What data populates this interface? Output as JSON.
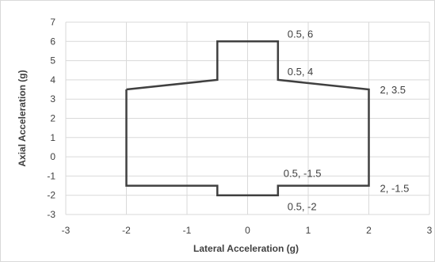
{
  "chart_data": {
    "type": "line",
    "title": "",
    "xlabel": "Lateral Acceleration (g)",
    "ylabel": "Axial Acceleration (g)",
    "xlim": [
      -3,
      3
    ],
    "ylim": [
      -3,
      7
    ],
    "x_ticks": [
      "-3",
      "-2",
      "-1",
      "0",
      "1",
      "2",
      "3"
    ],
    "y_ticks": [
      "-3",
      "-2",
      "-1",
      "0",
      "1",
      "2",
      "3",
      "4",
      "5",
      "6",
      "7"
    ],
    "grid": true,
    "legend": "none",
    "line_color": "#404040",
    "grid_color": "#d9d9d9",
    "series": [
      {
        "points": [
          {
            "x": -2,
            "y": 3.5
          },
          {
            "x": -0.5,
            "y": 4
          },
          {
            "x": -0.5,
            "y": 6
          },
          {
            "x": 0.5,
            "y": 6
          },
          {
            "x": 0.5,
            "y": 4
          },
          {
            "x": 2,
            "y": 3.5
          },
          {
            "x": 2,
            "y": -1.5
          },
          {
            "x": 0.5,
            "y": -1.5
          },
          {
            "x": 0.5,
            "y": -2
          },
          {
            "x": -0.5,
            "y": -2
          },
          {
            "x": -0.5,
            "y": -1.5
          },
          {
            "x": -2,
            "y": -1.5
          },
          {
            "x": -2,
            "y": 3.5
          }
        ]
      }
    ],
    "annotations": [
      {
        "text": "0.5, 6",
        "x": 0.5,
        "y": 6
      },
      {
        "text": "0.5, 4",
        "x": 0.5,
        "y": 4
      },
      {
        "text": "2, 3.5",
        "x": 2,
        "y": 3.5
      },
      {
        "text": "0.5, -1.5",
        "x": 0.5,
        "y": -1.5
      },
      {
        "text": "2, -1.5",
        "x": 2,
        "y": -1.5
      },
      {
        "text": "0.5, -2",
        "x": 0.5,
        "y": -2
      }
    ]
  }
}
